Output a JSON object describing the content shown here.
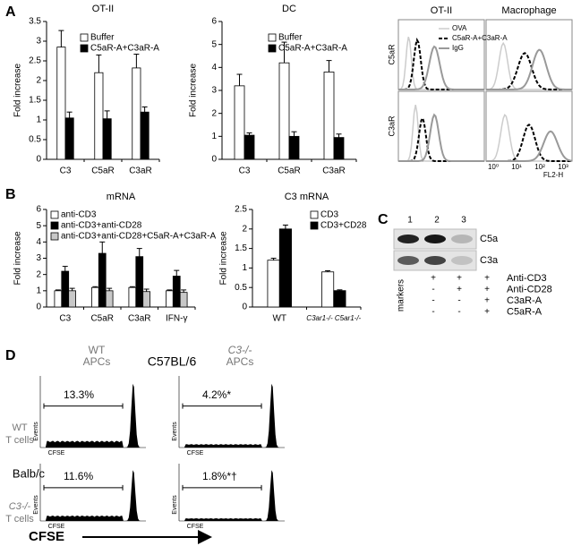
{
  "panel_labels": [
    "A",
    "B",
    "C",
    "D"
  ],
  "chart_data": [
    {
      "type": "bar",
      "title": "OT-II",
      "ylabel": "Fold increase",
      "categories": [
        "C3",
        "C5aR",
        "C3aR"
      ],
      "series": [
        {
          "name": "Buffer",
          "color": "#ffffff",
          "values": [
            2.85,
            2.2,
            2.32
          ],
          "errors": [
            0.42,
            0.45,
            0.35
          ]
        },
        {
          "name": "C5aR-A+C3aR-A",
          "color": "#000000",
          "values": [
            1.05,
            1.03,
            1.2
          ],
          "errors": [
            0.15,
            0.2,
            0.13
          ]
        }
      ],
      "ylim": [
        0,
        3.5
      ],
      "yticks": [
        0,
        0.5,
        1,
        1.5,
        2,
        2.5,
        3,
        3.5
      ]
    },
    {
      "type": "bar",
      "title": "DC",
      "ylabel": "Fold increase",
      "categories": [
        "C3",
        "C5aR",
        "C3aR"
      ],
      "series": [
        {
          "name": "Buffer",
          "color": "#ffffff",
          "values": [
            3.2,
            4.2,
            3.8
          ],
          "errors": [
            0.5,
            0.9,
            0.5
          ]
        },
        {
          "name": "C5aR-A+C3aR-A",
          "color": "#000000",
          "values": [
            1.05,
            1.0,
            0.95
          ],
          "errors": [
            0.1,
            0.2,
            0.15
          ]
        }
      ],
      "ylim": [
        0,
        6
      ],
      "yticks": [
        0,
        1,
        2,
        3,
        4,
        5,
        6
      ]
    },
    {
      "type": "bar",
      "title": "mRNA",
      "ylabel": "Fold increase",
      "categories": [
        "C3",
        "C5aR",
        "C3aR",
        "IFN-γ"
      ],
      "series": [
        {
          "name": "anti-CD3",
          "color": "#ffffff",
          "values": [
            1.0,
            1.2,
            1.2,
            1.0
          ],
          "errors": [
            0.05,
            0.05,
            0.05,
            0.05
          ]
        },
        {
          "name": "anti-CD3+anti-CD28",
          "color": "#000000",
          "values": [
            2.2,
            3.3,
            3.1,
            1.9
          ],
          "errors": [
            0.3,
            0.7,
            0.5,
            0.35
          ]
        },
        {
          "name": "anti-CD3+anti-CD28+C5aR-A+C3aR-A",
          "color": "#c8c8c8",
          "values": [
            1.0,
            1.0,
            0.95,
            0.9
          ],
          "errors": [
            0.15,
            0.15,
            0.15,
            0.15
          ]
        }
      ],
      "ylim": [
        0,
        6
      ],
      "yticks": [
        0,
        1,
        2,
        3,
        4,
        5,
        6
      ]
    },
    {
      "type": "bar",
      "title": "C3 mRNA",
      "ylabel": "Fold increase",
      "categories": [
        "WT",
        "C3ar1-/- C5ar1-/-"
      ],
      "series": [
        {
          "name": "CD3",
          "color": "#ffffff",
          "values": [
            1.2,
            0.9
          ],
          "errors": [
            0.05,
            0.03
          ]
        },
        {
          "name": "CD3+CD28",
          "color": "#000000",
          "values": [
            2.0,
            0.42
          ],
          "errors": [
            0.1,
            0.02
          ]
        }
      ],
      "ylim": [
        0,
        2.5
      ],
      "yticks": [
        0,
        0.5,
        1,
        1.5,
        2,
        2.5
      ]
    }
  ],
  "flow": {
    "columns": [
      "OT-II",
      "Macrophage"
    ],
    "rows": [
      "C5aR",
      "C3aR"
    ],
    "legend": [
      "OVA",
      "C5aR-A+C3aR-A",
      "IgG"
    ],
    "xticks": [
      "10⁰",
      "10¹",
      "10²",
      "10³"
    ],
    "xlabel": "FL2-H"
  },
  "blot": {
    "lanes": [
      "1",
      "2",
      "3"
    ],
    "bands": [
      "C5a",
      "C3a"
    ],
    "markers": "markers",
    "treatments": [
      {
        "label": "Anti-CD3",
        "marks": [
          "+",
          "+",
          "+"
        ]
      },
      {
        "label": "Anti-CD28",
        "marks": [
          "-",
          "+",
          "+"
        ]
      },
      {
        "label": "C3aR-A",
        "marks": [
          "-",
          "-",
          "+"
        ]
      },
      {
        "label": "C5aR-A",
        "marks": [
          "-",
          "-",
          "+"
        ]
      }
    ]
  },
  "cfse": {
    "strain_top": "C57BL/6",
    "strain_bottom": "Balb/c",
    "columns": [
      [
        "WT",
        "APCs"
      ],
      [
        "C3-/-",
        "APCs"
      ]
    ],
    "rows": [
      [
        "WT",
        "T cells"
      ],
      [
        "C3-/-",
        "T cells"
      ]
    ],
    "percentages": [
      [
        "13.3%",
        "4.2%*"
      ],
      [
        "11.6%",
        "1.8%*†"
      ]
    ],
    "events_label": "Events",
    "box_xlabel": "CFSE",
    "xlabel": "CFSE"
  }
}
